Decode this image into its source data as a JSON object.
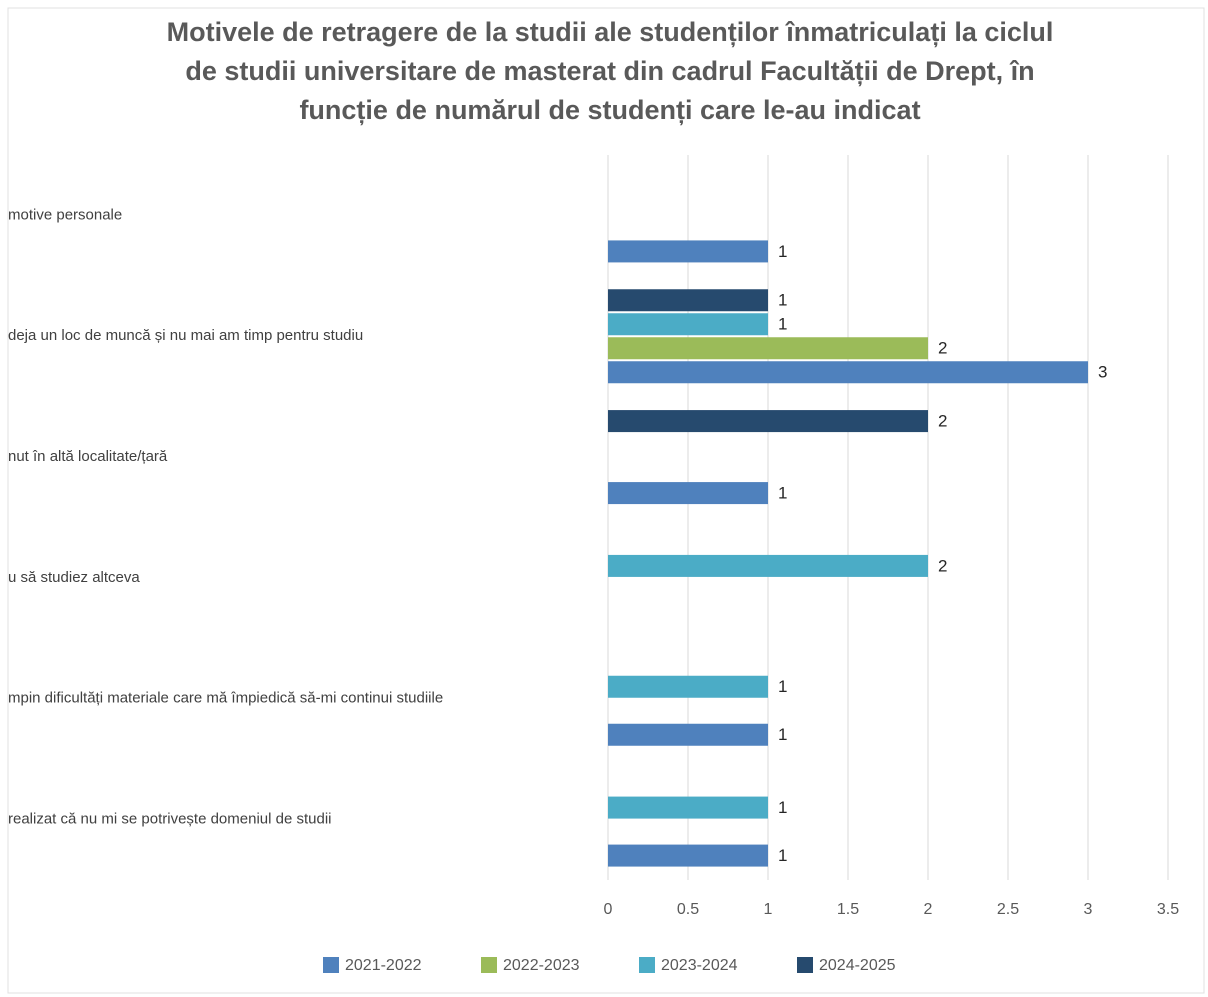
{
  "chart_data": {
    "type": "bar",
    "orientation": "horizontal",
    "title": [
      "Motivele de retragere de la studii ale studenților înmatriculați la ciclul",
      "de studii universitare de masterat din cadrul Facultății de Drept, în",
      "funcție de numărul de studenți care le-au indicat"
    ],
    "categories": [
      "motive personale",
      "deja un loc de muncă și nu mai am timp pentru studiu",
      "nut în altă localitate/țară",
      "u să studiez altceva",
      "mpin dificultăți materiale care mă împiedică să-mi continui studiile",
      "realizat că nu mi se potrivește domeniul de studii"
    ],
    "series": [
      {
        "name": "2021-2022",
        "color": "#4f81bd",
        "values": [
          1,
          3,
          1,
          null,
          1,
          1
        ]
      },
      {
        "name": "2022-2023",
        "color": "#9bbb59",
        "values": [
          null,
          2,
          null,
          null,
          null,
          null
        ]
      },
      {
        "name": "2023-2024",
        "color": "#4bacc6",
        "values": [
          null,
          1,
          null,
          2,
          1,
          1
        ]
      },
      {
        "name": "2024-2025",
        "color": "#264a6e",
        "values": [
          null,
          1,
          2,
          null,
          null,
          null
        ]
      }
    ],
    "xlim": [
      0,
      3.5
    ],
    "xticks": [
      0,
      0.5,
      1,
      1.5,
      2,
      2.5,
      3,
      3.5
    ],
    "grid": true,
    "legend": "bottom"
  }
}
